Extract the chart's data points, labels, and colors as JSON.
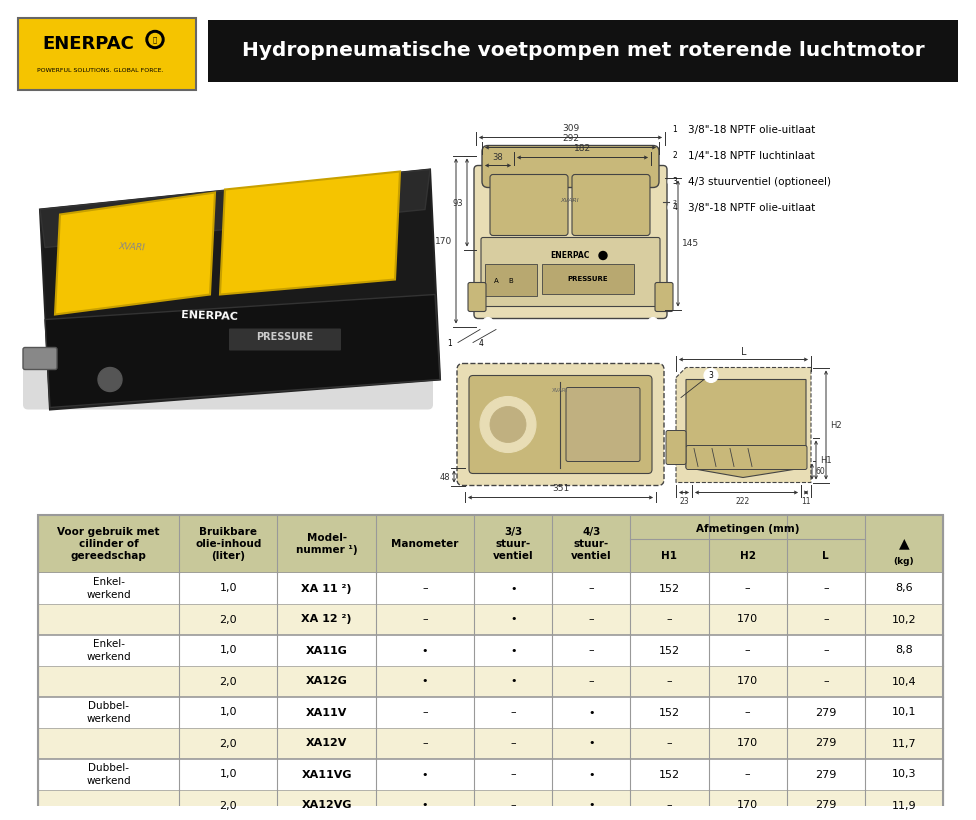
{
  "title": "Hydropneumatische voetpompen met roterende luchtmotor",
  "title_bg": "#111111",
  "title_color": "#ffffff",
  "enerpac_bg": "#f5c400",
  "enerpac_text": "ENERPAC",
  "enerpac_sub": "POWERFUL SOLUTIONS. GLOBAL FORCE.",
  "legend_items": [
    "3/8\"-18 NPTF olie-uitlaat",
    "1/4\"-18 NPTF luchtinlaat",
    "4/3 stuurventiel (optioneel)",
    "3/8\"-18 NPTF olie-uitlaat"
  ],
  "table_header_bg": "#c8c89a",
  "table_row_bg1": "#ffffff",
  "table_row_bg2": "#f5f0d5",
  "table_border": "#999999",
  "rows": [
    [
      "Enkel-\nwerkend",
      "1,0",
      "XA 11 ²)",
      "–",
      "•",
      "–",
      "152",
      "–",
      "–",
      "8,6"
    ],
    [
      "",
      "2,0",
      "XA 12 ²)",
      "–",
      "•",
      "–",
      "–",
      "170",
      "–",
      "10,2"
    ],
    [
      "Enkel-\nwerkend",
      "1,0",
      "XA11G",
      "•",
      "•",
      "–",
      "152",
      "–",
      "–",
      "8,8"
    ],
    [
      "",
      "2,0",
      "XA12G",
      "•",
      "•",
      "–",
      "–",
      "170",
      "–",
      "10,4"
    ],
    [
      "Dubbel-\nwerkend",
      "1,0",
      "XA11V",
      "–",
      "–",
      "•",
      "152",
      "–",
      "279",
      "10,1"
    ],
    [
      "",
      "2,0",
      "XA12V",
      "–",
      "–",
      "•",
      "–",
      "170",
      "279",
      "11,7"
    ],
    [
      "Dubbel-\nwerkend",
      "1,0",
      "XA11VG",
      "•",
      "–",
      "•",
      "152",
      "–",
      "279",
      "10,3"
    ],
    [
      "",
      "2,0",
      "XA12VG",
      "•",
      "–",
      "•",
      "–",
      "170",
      "279",
      "11,9"
    ]
  ],
  "page_bg": "#ffffff",
  "pump_color": "#e8ddb5",
  "pump_dark": "#c8b87a",
  "pump_outline": "#444444",
  "dim_color": "#333333"
}
